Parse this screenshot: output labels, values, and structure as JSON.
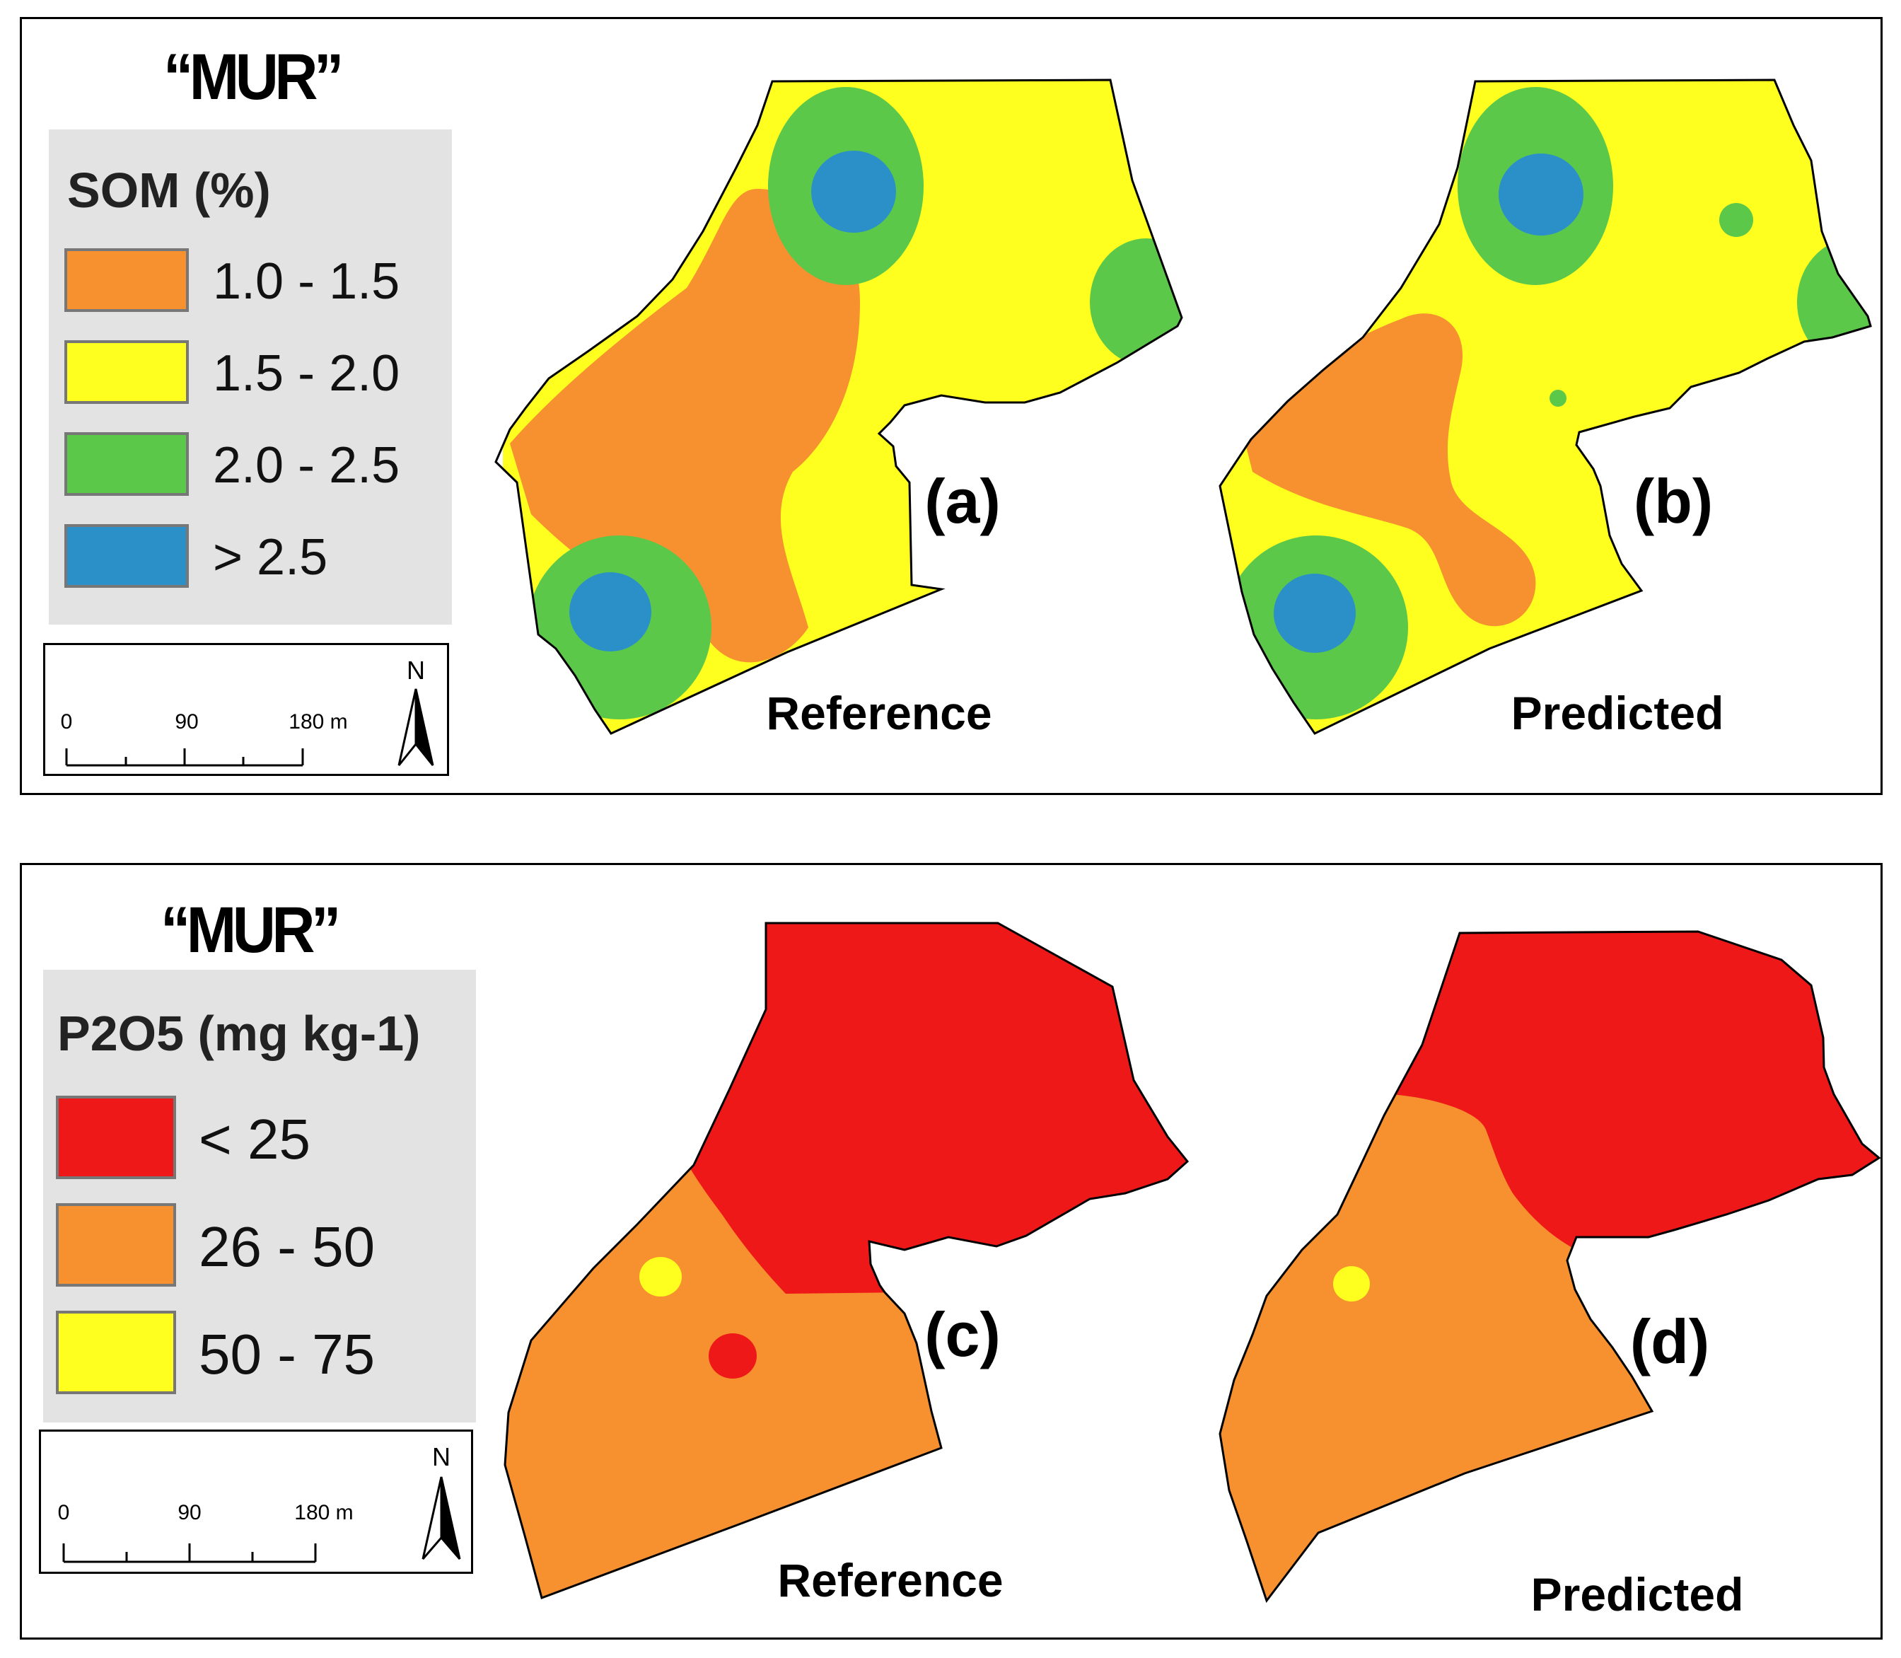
{
  "top": {
    "site_title": "“MUR”",
    "legend": {
      "title": "SOM (%)",
      "classes": [
        {
          "label": "1.0 - 1.5",
          "color": "#f7902f"
        },
        {
          "label": "1.5 - 2.0",
          "color": "#ffff1f"
        },
        {
          "label": "2.0 - 2.5",
          "color": "#5cc84a"
        },
        {
          "label": "> 2.5",
          "color": "#2b90c8"
        }
      ]
    },
    "scale": {
      "ticks": [
        "0",
        "90",
        "180 m"
      ],
      "north": "N"
    },
    "maps": [
      {
        "caption": "Reference",
        "letter": "(a)"
      },
      {
        "caption": "Predicted",
        "letter": "(b)"
      }
    ]
  },
  "bottom": {
    "site_title": "“MUR”",
    "legend": {
      "title": "P2O5 (mg kg-1)",
      "classes": [
        {
          "label": "< 25",
          "color": "#ee1818"
        },
        {
          "label": "26 - 50",
          "color": "#f7902f"
        },
        {
          "label": "50 - 75",
          "color": "#ffff1f"
        }
      ]
    },
    "scale": {
      "ticks": [
        "0",
        "90",
        "180 m"
      ],
      "north": "N"
    },
    "maps": [
      {
        "caption": "Reference",
        "letter": "(c)"
      },
      {
        "caption": "Predicted",
        "letter": "(d)"
      }
    ]
  }
}
